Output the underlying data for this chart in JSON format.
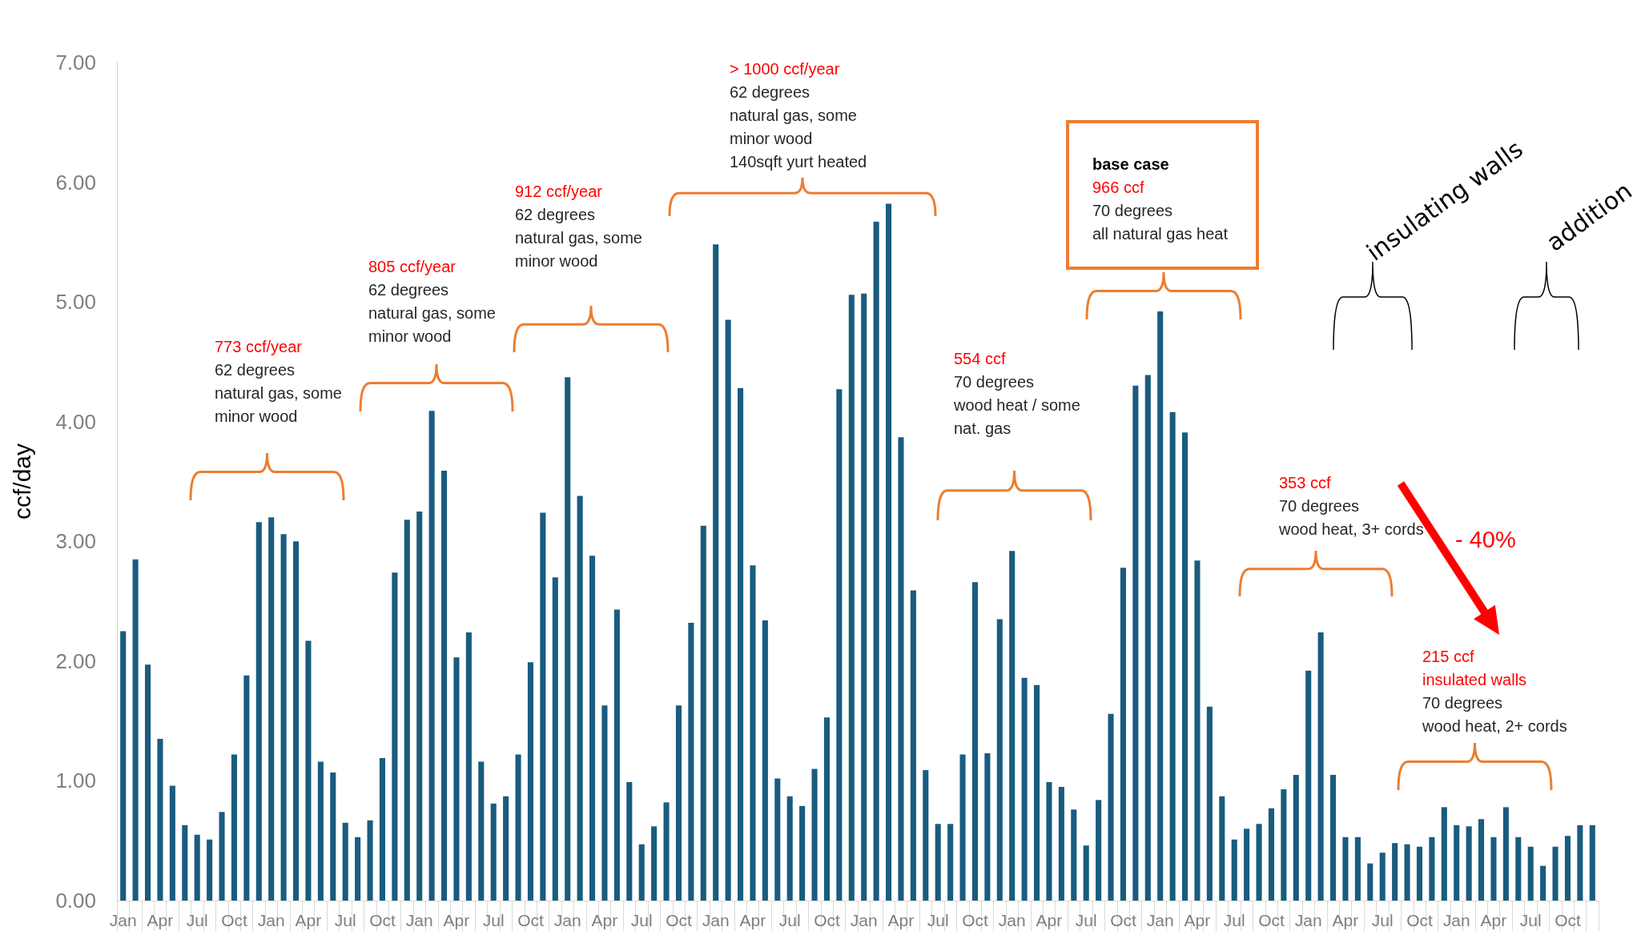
{
  "chart_data": {
    "type": "bar",
    "ylabel": "ccf/day",
    "categories": [
      "Jan",
      null,
      null,
      "Apr",
      null,
      null,
      "Jul",
      null,
      null,
      "Oct",
      null,
      null,
      "Jan",
      null,
      null,
      "Apr",
      null,
      null,
      "Jul",
      null,
      null,
      "Oct",
      null,
      null,
      "Jan",
      null,
      null,
      "Apr",
      null,
      null,
      "Jul",
      null,
      null,
      "Oct",
      null,
      null,
      "Jan",
      null,
      null,
      "Apr",
      null,
      null,
      "Jul",
      null,
      null,
      "Oct",
      null,
      null,
      "Jan",
      null,
      null,
      "Apr",
      null,
      null,
      "Jul",
      null,
      null,
      "Oct",
      null,
      null,
      "Jan",
      null,
      null,
      "Apr",
      null,
      null,
      "Jul",
      null,
      null,
      "Oct",
      null,
      null,
      "Jan",
      null,
      null,
      "Apr",
      null,
      null,
      "Jul",
      null,
      null,
      "Oct",
      null,
      null,
      "Jan",
      null,
      null,
      "Apr",
      null,
      null,
      "Jul",
      null,
      null,
      "Oct",
      null,
      null,
      "Jan",
      null,
      null,
      "Apr",
      null,
      null,
      "Jul",
      null,
      null,
      "Oct",
      null,
      null,
      "Jan",
      null,
      null,
      "Apr",
      null,
      null,
      "Jul",
      null,
      null,
      "Oct",
      null,
      null
    ],
    "series": [
      {
        "color": "#195c7f",
        "values": [
          2.25,
          2.85,
          1.97,
          1.35,
          0.96,
          0.63,
          0.55,
          0.51,
          0.74,
          1.22,
          1.88,
          3.16,
          3.2,
          3.06,
          3.0,
          2.17,
          1.16,
          1.07,
          0.65,
          0.53,
          0.67,
          1.19,
          2.74,
          3.18,
          3.25,
          4.09,
          3.59,
          2.03,
          2.24,
          1.16,
          0.81,
          0.87,
          1.22,
          1.99,
          3.24,
          2.7,
          4.37,
          3.38,
          2.88,
          1.63,
          2.43,
          0.99,
          0.47,
          0.62,
          0.82,
          1.63,
          2.32,
          3.13,
          5.48,
          4.85,
          4.28,
          2.8,
          2.34,
          1.02,
          0.87,
          0.79,
          1.1,
          1.53,
          4.27,
          5.06,
          5.07,
          5.67,
          5.82,
          3.87,
          2.59,
          1.09,
          0.64,
          0.64,
          1.22,
          2.66,
          1.23,
          2.35,
          2.92,
          1.86,
          1.8,
          0.99,
          0.95,
          0.76,
          0.46,
          0.84,
          1.56,
          2.78,
          4.3,
          4.39,
          4.92,
          4.08,
          3.91,
          2.84,
          1.62,
          0.87,
          0.51,
          0.6,
          0.64,
          0.77,
          0.93,
          1.05,
          1.92,
          2.24,
          1.05,
          0.53,
          0.53,
          0.31,
          0.4,
          0.48,
          0.47,
          0.45,
          0.53,
          0.78,
          0.63,
          0.62,
          0.68,
          0.53,
          0.78,
          0.53,
          0.45,
          0.29,
          0.45,
          0.54,
          0.63,
          0.63
        ]
      }
    ],
    "ylim": [
      0,
      7
    ],
    "yticks": [
      {
        "value": 0,
        "label": "0.00"
      },
      {
        "value": 1,
        "label": "1.00"
      },
      {
        "value": 2,
        "label": "2.00"
      },
      {
        "value": 3,
        "label": "3.00"
      },
      {
        "value": 4,
        "label": "4.00"
      },
      {
        "value": 5,
        "label": "5.00"
      },
      {
        "value": 6,
        "label": "6.00"
      },
      {
        "value": 7,
        "label": "7.00"
      }
    ],
    "grid": false,
    "annotations": [
      "773 ccf/year\n62 degrees\nnatural gas, some\nminor wood",
      "805 ccf/year\n62 degrees\nnatural gas, some\nminor wood",
      "912 ccf/year\n62 degrees\nnatural gas, some\nminor wood",
      "> 1000 ccf/year\n62 degrees\nnatural gas, some\nminor wood\n140sqft yurt heated",
      "554 ccf\n70 degrees\nwood heat / some\nnat. gas",
      "base case\n966 ccf\n70 degrees\nall natural gas heat",
      "353 ccf\n70 degrees\nwood heat, 3+ cords",
      "215 ccf\ninsulated walls\n70 degrees\nwood heat, 2+ cords",
      "insulating walls",
      "addition",
      "- 40%"
    ]
  }
}
